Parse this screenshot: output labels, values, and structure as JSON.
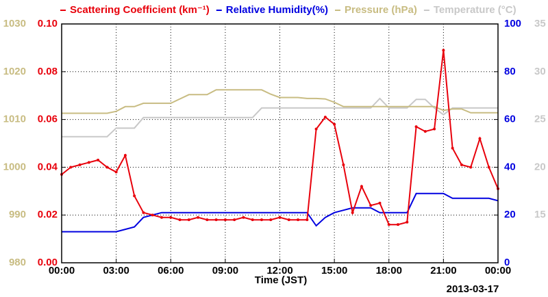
{
  "chart_data": {
    "type": "line",
    "x_label": "Time (JST)",
    "date_label": "2013-03-17",
    "xlim": [
      0,
      24
    ],
    "xticks": [
      {
        "value": 0,
        "label": "00:00"
      },
      {
        "value": 3,
        "label": "03:00"
      },
      {
        "value": 6,
        "label": "06:00"
      },
      {
        "value": 9,
        "label": "09:00"
      },
      {
        "value": 12,
        "label": "12:00"
      },
      {
        "value": 15,
        "label": "15:00"
      },
      {
        "value": 18,
        "label": "18:00"
      },
      {
        "value": 21,
        "label": "21:00"
      },
      {
        "value": 24,
        "label": "00:00"
      }
    ],
    "ylim": [
      0,
      0.1
    ],
    "yticks": [
      {
        "value": 0,
        "label": "0.00"
      },
      {
        "value": 0.02,
        "label": "0.02"
      },
      {
        "value": 0.04,
        "label": "0.04"
      },
      {
        "value": 0.06,
        "label": "0.06"
      },
      {
        "value": 0.08,
        "label": "0.08"
      },
      {
        "value": 0.1,
        "label": "0.10"
      }
    ],
    "y2lim": [
      0,
      100
    ],
    "y2ticks": [
      0,
      20,
      40,
      60,
      80,
      100
    ],
    "y3lim": [
      980,
      1030
    ],
    "y3ticks": [
      980,
      990,
      1000,
      1010,
      1020,
      1030
    ],
    "y4lim": [
      10,
      35
    ],
    "y4ticks": [
      15,
      20,
      25,
      30,
      35
    ],
    "grid": true,
    "x": [
      0,
      0.5,
      1,
      1.5,
      2,
      2.5,
      3,
      3.5,
      4,
      4.5,
      5,
      5.5,
      6,
      6.5,
      7,
      7.5,
      8,
      8.5,
      9,
      9.5,
      10,
      10.5,
      11,
      11.5,
      12,
      12.5,
      13,
      13.5,
      14,
      14.5,
      15,
      15.5,
      16,
      16.5,
      17,
      17.5,
      18,
      18.5,
      19,
      19.5,
      20,
      20.5,
      21,
      21.5,
      22,
      22.5,
      23,
      23.5,
      24
    ],
    "series": [
      {
        "name": "Scattering Coefficient (km⁻¹)",
        "color": "#e8000b",
        "axis": "y",
        "markers": true,
        "values": [
          0.037,
          0.04,
          0.041,
          0.042,
          0.043,
          0.04,
          0.038,
          0.045,
          0.028,
          0.021,
          0.02,
          0.019,
          0.019,
          0.018,
          0.018,
          0.019,
          0.018,
          0.018,
          0.018,
          0.018,
          0.019,
          0.018,
          0.018,
          0.018,
          0.019,
          0.018,
          0.018,
          0.018,
          0.056,
          0.061,
          0.058,
          0.041,
          0.021,
          0.032,
          0.024,
          0.025,
          0.016,
          0.016,
          0.017,
          0.057,
          0.055,
          0.056,
          0.089,
          0.048,
          0.041,
          0.04,
          0.052,
          0.04,
          0.031
        ]
      },
      {
        "name": "Relative Humidity(%)",
        "color": "#0000e0",
        "axis": "y2",
        "markers": false,
        "values": [
          13,
          13,
          13,
          13,
          13,
          13,
          13,
          14,
          15,
          19,
          20,
          21,
          21,
          21,
          21,
          21,
          21,
          21,
          21,
          21,
          21,
          21,
          21,
          21,
          21,
          21,
          21,
          21,
          15.5,
          19,
          21,
          22,
          23,
          23,
          23,
          21,
          21,
          21,
          21,
          29,
          29,
          29,
          29,
          27,
          27,
          27,
          27,
          27,
          26
        ]
      },
      {
        "name": "Pressure (hPa)",
        "color": "#c8bc82",
        "axis": "y3",
        "markers": false,
        "values": [
          1011.3,
          1011.3,
          1011.3,
          1011.3,
          1011.3,
          1011.3,
          1011.7,
          1012.7,
          1012.7,
          1013.4,
          1013.4,
          1013.4,
          1013.4,
          1014.3,
          1015.2,
          1015.2,
          1015.2,
          1016.2,
          1016.2,
          1016.2,
          1016.2,
          1016.2,
          1016.2,
          1015.3,
          1014.6,
          1014.6,
          1014.6,
          1014.4,
          1014.4,
          1014.3,
          1013.6,
          1012.7,
          1012.7,
          1012.7,
          1012.7,
          1012.7,
          1012.7,
          1012.7,
          1012.7,
          1012.7,
          1012.7,
          1012.7,
          1011.9,
          1012.2,
          1012.2,
          1011.4,
          1011.4,
          1011.4,
          1011.4
        ]
      },
      {
        "name": "Temperature (°C)",
        "color": "#c8c8c8",
        "axis": "y4",
        "markers": false,
        "values": [
          23.2,
          23.2,
          23.2,
          23.2,
          23.2,
          23.2,
          24.1,
          24.1,
          24.1,
          25.2,
          25.2,
          25.2,
          25.2,
          25.2,
          25.2,
          25.2,
          25.2,
          25.2,
          25.2,
          25.2,
          25.2,
          25.2,
          26.2,
          26.2,
          26.2,
          26.2,
          26.2,
          26.2,
          26.2,
          26.2,
          26.2,
          26.2,
          26.2,
          26.2,
          26.2,
          27.2,
          26.2,
          26.2,
          26.2,
          27.1,
          27.1,
          26.2,
          25.5,
          26.2,
          26.2,
          26.2,
          26.2,
          26.2,
          26.2
        ]
      }
    ]
  }
}
